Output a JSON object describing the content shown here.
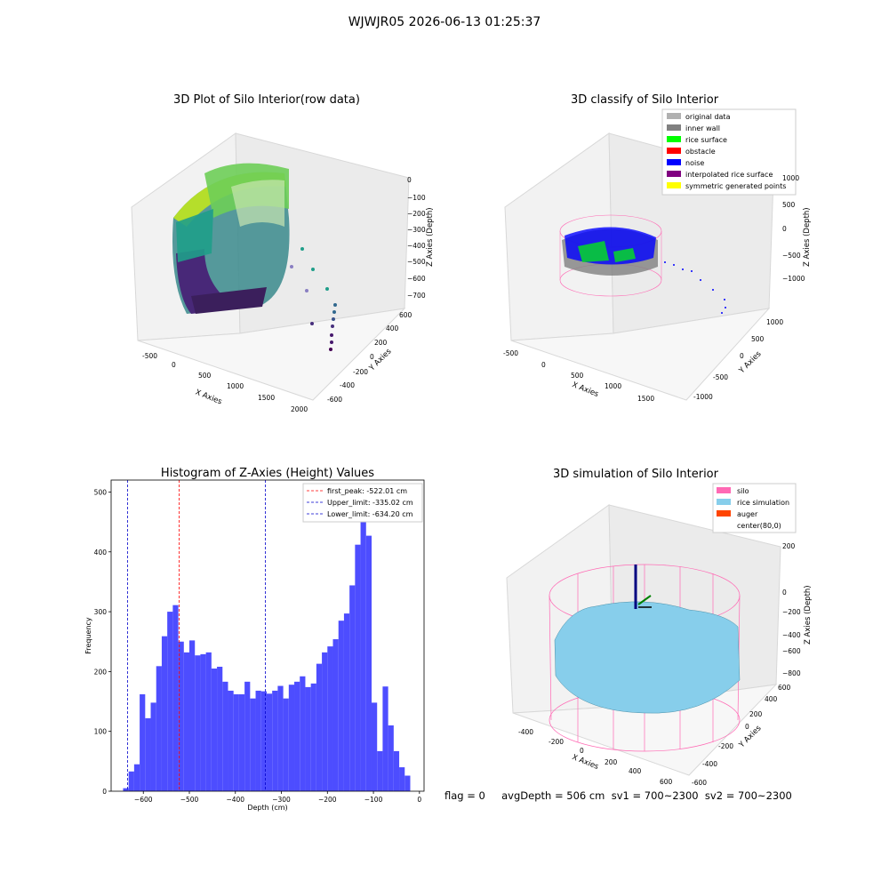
{
  "figure": {
    "title": "WJWJR05 2026-06-13 01:25:37"
  },
  "status": {
    "text": "flag = 0     avgDepth = 506 cm  sv1 = 700~2300  sv2 = 700~2300"
  },
  "colors": {
    "histogram_bar": "#4d4dff",
    "first_peak_line": "#ff0000",
    "limit_line": "#0000cc",
    "silo": "#ff69b4",
    "rice_simulation": "#87ceeb",
    "auger": "#ff4500",
    "noise": "#0000ff",
    "rice_surface": "#00ff00"
  },
  "panel_tl": {
    "title": "3D Plot of Silo Interior(row data)",
    "xlabel": "X Axies",
    "ylabel": "Y Axies",
    "zlabel": "Z Axies (Depth)",
    "xticks": [
      "-500",
      "0",
      "500",
      "1000",
      "1500",
      "2000"
    ],
    "yticks": [
      "-600",
      "-400",
      "-200",
      "0",
      "200",
      "400",
      "600"
    ],
    "zticks": [
      "0",
      "−100",
      "−200",
      "−300",
      "−400",
      "−500",
      "−600",
      "−700"
    ]
  },
  "panel_tr": {
    "title": "3D classify of Silo Interior",
    "xlabel": "X Axies",
    "ylabel": "Y Axies",
    "zlabel": "Z Axies (Depth)",
    "xticks": [
      "-500",
      "0",
      "500",
      "1000",
      "1500"
    ],
    "yticks": [
      "-1000",
      "-500",
      "0",
      "500",
      "1000"
    ],
    "zticks": [
      "1000",
      "500",
      "0",
      "−500",
      "−1000"
    ],
    "legend": [
      {
        "label": "original data",
        "color": "#b0b0b0"
      },
      {
        "label": "inner wall",
        "color": "#808080"
      },
      {
        "label": "rice surface",
        "color": "#00ff00"
      },
      {
        "label": "obstacle",
        "color": "#ff0000"
      },
      {
        "label": "noise",
        "color": "#0000ff"
      },
      {
        "label": "interpolated rice surface",
        "color": "#800080"
      },
      {
        "label": "symmetric generated points",
        "color": "#ffff00"
      }
    ]
  },
  "panel_br": {
    "title": "3D simulation of Silo Interior",
    "xlabel": "X Axies",
    "ylabel": "Y Axies",
    "zlabel": "Z Axies (Depth)",
    "xticks": [
      "-400",
      "-200",
      "0",
      "200",
      "400",
      "600"
    ],
    "yticks": [
      "-600",
      "-400",
      "-200",
      "0",
      "200",
      "400",
      "600"
    ],
    "zticks": [
      "200",
      "0",
      "−200",
      "−400",
      "−600",
      "−800"
    ],
    "legend": [
      {
        "label": "silo",
        "color": "#ff69b4"
      },
      {
        "label": "rice simulation",
        "color": "#87ceeb"
      },
      {
        "label": "auger",
        "color": "#ff4500"
      },
      {
        "label": "center(80,0)",
        "color": ""
      }
    ]
  },
  "chart_data": [
    {
      "type": "bar",
      "title": "Histogram of Z-Axies (Height) Values",
      "xlabel": "Depth (cm)",
      "ylabel": "Frequency",
      "xlim": [
        -670,
        10
      ],
      "ylim": [
        0,
        520
      ],
      "xticks": [
        -600,
        -500,
        -400,
        -300,
        -200,
        -100,
        0
      ],
      "yticks": [
        0,
        100,
        200,
        300,
        400,
        500
      ],
      "bin_start": -644,
      "bin_width": 12,
      "values": [
        5,
        33,
        45,
        162,
        122,
        148,
        209,
        259,
        300,
        311,
        250,
        232,
        252,
        227,
        229,
        232,
        205,
        208,
        183,
        168,
        162,
        162,
        183,
        155,
        168,
        167,
        163,
        168,
        176,
        155,
        178,
        183,
        192,
        174,
        180,
        213,
        232,
        242,
        254,
        285,
        297,
        344,
        412,
        505,
        427,
        148,
        67,
        175,
        110,
        67,
        40,
        26
      ],
      "vlines": [
        {
          "x": -522.01,
          "label": "first_peak: -522.01 cm",
          "color": "#ff0000"
        },
        {
          "x": -335.02,
          "label": "Upper_limit: -335.02 cm",
          "color": "#0000cc"
        },
        {
          "x": -634.2,
          "label": "Lower_limit: -634.20 cm",
          "color": "#0000cc"
        }
      ],
      "legend_position": "top-right",
      "grid": false
    }
  ]
}
